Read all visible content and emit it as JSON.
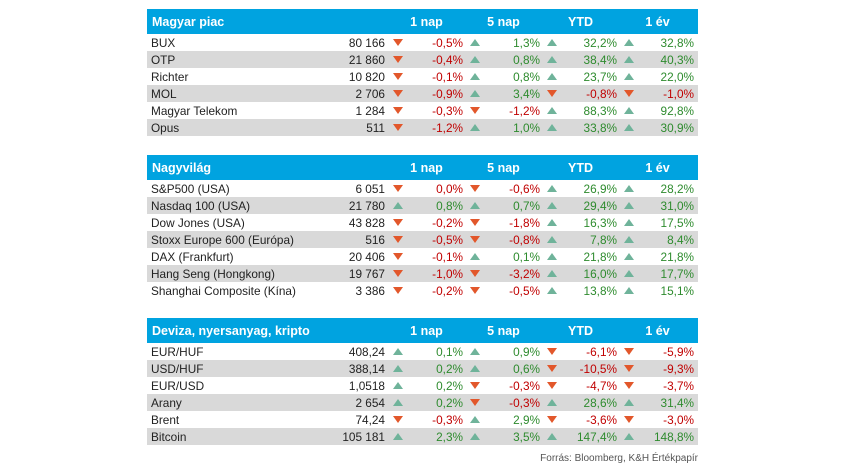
{
  "colors": {
    "header_bg": "#00a3e0",
    "up": "#6fb39a",
    "down": "#e2572b",
    "pos_text": "#2e8b2e",
    "neg_text": "#c00000"
  },
  "sections": [
    {
      "title": "Magyar piac",
      "cols": [
        "1 nap",
        "5 nap",
        "YTD",
        "1 év"
      ],
      "rows": [
        {
          "name": "BUX",
          "value": "80 166",
          "ch": [
            {
              "v": "-0,5%",
              "d": "down"
            },
            {
              "v": "1,3%",
              "d": "up"
            },
            {
              "v": "32,2%",
              "d": "up"
            },
            {
              "v": "32,8%",
              "d": "up"
            }
          ]
        },
        {
          "name": "OTP",
          "value": "21 860",
          "ch": [
            {
              "v": "-0,4%",
              "d": "down"
            },
            {
              "v": "0,8%",
              "d": "up"
            },
            {
              "v": "38,4%",
              "d": "up"
            },
            {
              "v": "40,3%",
              "d": "up"
            }
          ]
        },
        {
          "name": "Richter",
          "value": "10 820",
          "ch": [
            {
              "v": "-0,1%",
              "d": "down"
            },
            {
              "v": "0,8%",
              "d": "up"
            },
            {
              "v": "23,7%",
              "d": "up"
            },
            {
              "v": "22,0%",
              "d": "up"
            }
          ]
        },
        {
          "name": "MOL",
          "value": "2 706",
          "ch": [
            {
              "v": "-0,9%",
              "d": "down"
            },
            {
              "v": "3,4%",
              "d": "up"
            },
            {
              "v": "-0,8%",
              "d": "down"
            },
            {
              "v": "-1,0%",
              "d": "down"
            }
          ]
        },
        {
          "name": "Magyar Telekom",
          "value": "1 284",
          "ch": [
            {
              "v": "-0,3%",
              "d": "down"
            },
            {
              "v": "-1,2%",
              "d": "down"
            },
            {
              "v": "88,3%",
              "d": "up"
            },
            {
              "v": "92,8%",
              "d": "up"
            }
          ]
        },
        {
          "name": "Opus",
          "value": "511",
          "ch": [
            {
              "v": "-1,2%",
              "d": "down"
            },
            {
              "v": "1,0%",
              "d": "up"
            },
            {
              "v": "33,8%",
              "d": "up"
            },
            {
              "v": "30,9%",
              "d": "up"
            }
          ]
        }
      ]
    },
    {
      "title": "Nagyvilág",
      "cols": [
        "1 nap",
        "5 nap",
        "YTD",
        "1 év"
      ],
      "rows": [
        {
          "name": "S&P500 (USA)",
          "value": "6 051",
          "ch": [
            {
              "v": "0,0%",
              "d": "down"
            },
            {
              "v": "-0,6%",
              "d": "down"
            },
            {
              "v": "26,9%",
              "d": "up"
            },
            {
              "v": "28,2%",
              "d": "up"
            }
          ]
        },
        {
          "name": "Nasdaq 100 (USA)",
          "value": "21 780",
          "ch": [
            {
              "v": "0,8%",
              "d": "up"
            },
            {
              "v": "0,7%",
              "d": "up"
            },
            {
              "v": "29,4%",
              "d": "up"
            },
            {
              "v": "31,0%",
              "d": "up"
            }
          ]
        },
        {
          "name": "Dow Jones (USA)",
          "value": "43 828",
          "ch": [
            {
              "v": "-0,2%",
              "d": "down"
            },
            {
              "v": "-1,8%",
              "d": "down"
            },
            {
              "v": "16,3%",
              "d": "up"
            },
            {
              "v": "17,5%",
              "d": "up"
            }
          ]
        },
        {
          "name": "Stoxx Europe 600 (Európa)",
          "value": "516",
          "ch": [
            {
              "v": "-0,5%",
              "d": "down"
            },
            {
              "v": "-0,8%",
              "d": "down"
            },
            {
              "v": "7,8%",
              "d": "up"
            },
            {
              "v": "8,4%",
              "d": "up"
            }
          ]
        },
        {
          "name": "DAX (Frankfurt)",
          "value": "20 406",
          "ch": [
            {
              "v": "-0,1%",
              "d": "down"
            },
            {
              "v": "0,1%",
              "d": "up"
            },
            {
              "v": "21,8%",
              "d": "up"
            },
            {
              "v": "21,8%",
              "d": "up"
            }
          ]
        },
        {
          "name": "Hang Seng (Hongkong)",
          "value": "19 767",
          "ch": [
            {
              "v": "-1,0%",
              "d": "down"
            },
            {
              "v": "-3,2%",
              "d": "down"
            },
            {
              "v": "16,0%",
              "d": "up"
            },
            {
              "v": "17,7%",
              "d": "up"
            }
          ]
        },
        {
          "name": "Shanghai Composite (Kína)",
          "value": "3 386",
          "ch": [
            {
              "v": "-0,2%",
              "d": "down"
            },
            {
              "v": "-0,5%",
              "d": "down"
            },
            {
              "v": "13,8%",
              "d": "up"
            },
            {
              "v": "15,1%",
              "d": "up"
            }
          ]
        }
      ]
    },
    {
      "title": "Deviza, nyersanyag, kripto",
      "cols": [
        "1 nap",
        "5 nap",
        "YTD",
        "1 év"
      ],
      "rows": [
        {
          "name": "EUR/HUF",
          "value": "408,24",
          "ch": [
            {
              "v": "0,1%",
              "d": "up"
            },
            {
              "v": "0,9%",
              "d": "up"
            },
            {
              "v": "-6,1%",
              "d": "down"
            },
            {
              "v": "-5,9%",
              "d": "down"
            }
          ]
        },
        {
          "name": "USD/HUF",
          "value": "388,14",
          "ch": [
            {
              "v": "0,2%",
              "d": "up"
            },
            {
              "v": "0,6%",
              "d": "up"
            },
            {
              "v": "-10,5%",
              "d": "down"
            },
            {
              "v": "-9,3%",
              "d": "down"
            }
          ]
        },
        {
          "name": "EUR/USD",
          "value": "1,0518",
          "ch": [
            {
              "v": "0,2%",
              "d": "up"
            },
            {
              "v": "-0,3%",
              "d": "down"
            },
            {
              "v": "-4,7%",
              "d": "down"
            },
            {
              "v": "-3,7%",
              "d": "down"
            }
          ]
        },
        {
          "name": "Arany",
          "value": "2 654",
          "ch": [
            {
              "v": "0,2%",
              "d": "up"
            },
            {
              "v": "-0,3%",
              "d": "down"
            },
            {
              "v": "28,6%",
              "d": "up"
            },
            {
              "v": "31,4%",
              "d": "up"
            }
          ]
        },
        {
          "name": "Brent",
          "value": "74,24",
          "ch": [
            {
              "v": "-0,3%",
              "d": "down"
            },
            {
              "v": "2,9%",
              "d": "up"
            },
            {
              "v": "-3,6%",
              "d": "down"
            },
            {
              "v": "-3,0%",
              "d": "down"
            }
          ]
        },
        {
          "name": "Bitcoin",
          "value": "105 181",
          "ch": [
            {
              "v": "2,3%",
              "d": "up"
            },
            {
              "v": "3,5%",
              "d": "up"
            },
            {
              "v": "147,4%",
              "d": "up"
            },
            {
              "v": "148,8%",
              "d": "up"
            }
          ]
        }
      ]
    }
  ],
  "source": "Forrás: Bloomberg, K&H Értékpapír"
}
